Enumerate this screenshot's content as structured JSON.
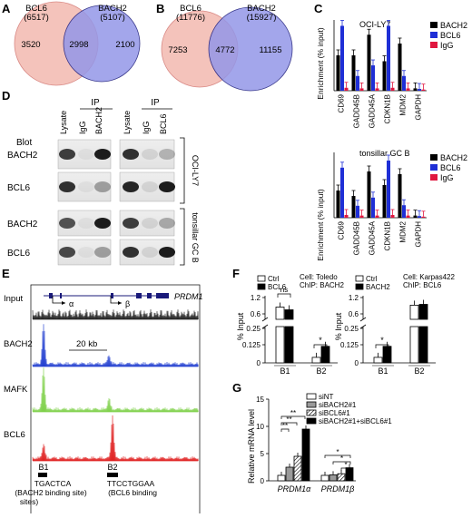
{
  "panels": {
    "A": {
      "label": "A",
      "left_name": "BCL6",
      "left_count": "(6517)",
      "right_name": "BACH2",
      "right_count": "(5107)",
      "left_only": "3520",
      "overlap": "2998",
      "right_only": "2100",
      "colors": {
        "left": "#f2b8b0",
        "right": "#8a8fe6",
        "overlap": "#6e62b4"
      }
    },
    "B": {
      "label": "B",
      "left_name": "BCL6",
      "left_count": "(11776)",
      "right_name": "BACH2",
      "right_count": "(15927)",
      "left_only": "7253",
      "overlap": "4772",
      "right_only": "11155"
    },
    "C": {
      "label": "C",
      "legend": [
        {
          "name": "BACH2",
          "color": "#000000"
        },
        {
          "name": "BCL6",
          "color": "#1f2fd6"
        },
        {
          "name": "IgG",
          "color": "#e0173f"
        }
      ],
      "ylabel": "Enrichment (% input)",
      "charts": [
        {
          "title": "OCI-LY7"
        },
        {
          "title": "tonsillar GC B"
        }
      ]
    },
    "D": {
      "label": "D",
      "blot_label": "Blot",
      "ip_label": "IP",
      "lanes_left": [
        "Lysate",
        "IgG",
        "BACH2"
      ],
      "lanes_right": [
        "Lysate",
        "IgG",
        "BCL6"
      ],
      "rows": [
        "BACH2",
        "BCL6",
        "BACH2",
        "BCL6"
      ],
      "groups": [
        "OCI-LY7",
        "tonsillar GC B"
      ]
    },
    "E": {
      "label": "E",
      "gene": "PRDM1",
      "promoter_a": "α",
      "promoter_b": "β",
      "tracks": [
        "Input",
        "BACH2",
        "MAFK",
        "BCL6"
      ],
      "scale_bar": "20 kb",
      "sites": [
        "B1",
        "B2"
      ],
      "site_notes": [
        {
          "seq": "TGACTCA",
          "line2": "(BACH2 binding site)",
          "line3": "sites)"
        },
        {
          "seq": "TTCCTGGAA",
          "line2": "(BCL6 binding"
        }
      ],
      "track_colors": {
        "Input": "#222222",
        "BACH2": "#2340d0",
        "MAFK": "#7fd04a",
        "BCL6": "#e02020"
      }
    },
    "F": {
      "label": "F",
      "ylabel": "% Input",
      "left": {
        "legend": [
          "Ctrl",
          "BCL6"
        ],
        "cell": "Cell: Toledo",
        "chip": "ChIP: BACH2",
        "ticks_top": [
          "0.6",
          "1.2"
        ],
        "ticks_bottom": [
          "0",
          "0.125",
          "0.25"
        ],
        "groups": [
          "B1",
          "B2"
        ],
        "sig": [
          "ns",
          "*"
        ]
      },
      "right": {
        "legend": [
          "Ctrl",
          "BACH2"
        ],
        "cell": "Cell: Karpas422",
        "chip": "ChIP: BCL6",
        "ticks_top": [
          "0.6",
          "1.2"
        ],
        "ticks_bottom": [
          "0",
          "0.125",
          "0.25"
        ],
        "groups": [
          "B1",
          "B2"
        ],
        "sig": [
          "*"
        ]
      }
    },
    "G": {
      "label": "G",
      "ylabel": "Relative mRNA level",
      "ticks": [
        "0",
        "5",
        "10",
        "15"
      ],
      "legend": [
        "siNT",
        "siBACH2#1",
        "siBCL6#1",
        "siBACH2#1+siBCL6#1"
      ],
      "groups": [
        "PRDM1α",
        "PRDM1β"
      ],
      "sig": [
        "**",
        "**",
        "**",
        "*",
        "*",
        "*"
      ]
    }
  },
  "chart_data": [
    {
      "type": "bar",
      "title": "OCI-LY7",
      "ylabel": "Enrichment (% input)",
      "categories": [
        "CD69",
        "GADD45B",
        "GADD45A",
        "CDKN1B",
        "MDM2",
        "GAPDH"
      ],
      "series": [
        {
          "name": "BACH2",
          "values": [
            0.6,
            0.6,
            0.95,
            0.5,
            0.8,
            0.04
          ]
        },
        {
          "name": "BCL6",
          "values": [
            1.1,
            0.25,
            0.43,
            1.1,
            0.25,
            0.03
          ]
        },
        {
          "name": "IgG",
          "values": [
            0.05,
            0.04,
            0.04,
            0.05,
            0.04,
            0.02
          ]
        }
      ],
      "ylim": [
        0,
        1.2
      ]
    },
    {
      "type": "bar",
      "title": "tonsillar GC B",
      "ylabel": "Enrichment (% input)",
      "categories": [
        "CD69",
        "GADD45B",
        "GADD45A",
        "CDKN1B",
        "MDM2",
        "GAPDH"
      ],
      "series": [
        {
          "name": "BACH2",
          "values": [
            0.5,
            0.4,
            0.85,
            0.6,
            0.8,
            0.04
          ]
        },
        {
          "name": "BCL6",
          "values": [
            0.92,
            0.22,
            0.37,
            1.05,
            0.23,
            0.03
          ]
        },
        {
          "name": "IgG",
          "values": [
            0.05,
            0.04,
            0.04,
            0.05,
            0.04,
            0.02
          ]
        }
      ],
      "ylim": [
        0,
        1.2
      ]
    },
    {
      "type": "bar",
      "ylabel": "% Input",
      "categories": [
        "B1",
        "B2"
      ],
      "series": [
        {
          "name": "Ctrl",
          "values": [
            0.85,
            0.04
          ]
        },
        {
          "name": "BCL6",
          "values": [
            0.75,
            0.12
          ]
        }
      ]
    },
    {
      "type": "bar",
      "ylabel": "% Input",
      "categories": [
        "B1",
        "B2"
      ],
      "series": [
        {
          "name": "Ctrl",
          "values": [
            0.04,
            0.92
          ]
        },
        {
          "name": "BACH2",
          "values": [
            0.12,
            0.95
          ]
        }
      ]
    },
    {
      "type": "bar",
      "ylabel": "Relative mRNA level",
      "categories": [
        "PRDM1α",
        "PRDM1β"
      ],
      "series": [
        {
          "name": "siNT",
          "values": [
            1,
            1
          ]
        },
        {
          "name": "siBACH2#1",
          "values": [
            2.5,
            1.1
          ]
        },
        {
          "name": "siBCL6#1",
          "values": [
            4.5,
            1.3
          ]
        },
        {
          "name": "siBACH2#1+siBCL6#1",
          "values": [
            9.5,
            2.4
          ]
        }
      ],
      "ylim": [
        0,
        15
      ]
    }
  ]
}
